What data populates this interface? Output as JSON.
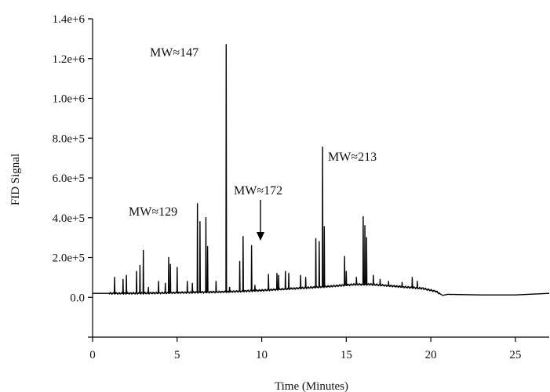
{
  "chart_data": {
    "type": "line",
    "xlabel": "Time (Minutes)",
    "ylabel": "FID Signal",
    "xlim": [
      0,
      27
    ],
    "ylim": [
      -200000,
      1400000
    ],
    "x_ticks": [
      0,
      5,
      10,
      15,
      20,
      25
    ],
    "x_tick_labels": [
      "0",
      "5",
      "10",
      "15",
      "20",
      "25"
    ],
    "y_ticks": [
      0,
      200000,
      400000,
      600000,
      800000,
      1000000,
      1200000,
      1400000
    ],
    "y_tick_labels": [
      "0.0",
      "2.0e+5",
      "4.0e+5",
      "6.0e+5",
      "8.0e+5",
      "1.0e+6",
      "1.2e+6",
      "1.4e+6"
    ],
    "grid": false,
    "line_color": "#000000",
    "baseline": [
      [
        0.0,
        20000
      ],
      [
        2.0,
        20000
      ],
      [
        4.0,
        22000
      ],
      [
        6.0,
        25000
      ],
      [
        8.0,
        28000
      ],
      [
        10.0,
        35000
      ],
      [
        12.0,
        45000
      ],
      [
        14.0,
        55000
      ],
      [
        15.5,
        65000
      ],
      [
        16.5,
        65000
      ],
      [
        18.0,
        55000
      ],
      [
        19.5,
        45000
      ],
      [
        20.3,
        30000
      ],
      [
        20.7,
        10000
      ],
      [
        21.0,
        15000
      ],
      [
        23.0,
        12000
      ],
      [
        25.0,
        12000
      ],
      [
        27.0,
        20000
      ]
    ],
    "peaks": [
      {
        "x": 1.3,
        "y": 100000
      },
      {
        "x": 1.8,
        "y": 90000
      },
      {
        "x": 2.0,
        "y": 110000
      },
      {
        "x": 2.6,
        "y": 130000
      },
      {
        "x": 2.8,
        "y": 160000
      },
      {
        "x": 3.0,
        "y": 235000
      },
      {
        "x": 3.3,
        "y": 50000
      },
      {
        "x": 3.9,
        "y": 80000
      },
      {
        "x": 4.3,
        "y": 70000
      },
      {
        "x": 4.5,
        "y": 200000
      },
      {
        "x": 4.6,
        "y": 165000
      },
      {
        "x": 5.0,
        "y": 150000
      },
      {
        "x": 5.6,
        "y": 80000
      },
      {
        "x": 5.9,
        "y": 70000
      },
      {
        "x": 6.2,
        "y": 470000
      },
      {
        "x": 6.35,
        "y": 380000
      },
      {
        "x": 6.7,
        "y": 400000
      },
      {
        "x": 6.8,
        "y": 255000
      },
      {
        "x": 7.3,
        "y": 80000
      },
      {
        "x": 7.9,
        "y": 1270000
      },
      {
        "x": 8.1,
        "y": 50000
      },
      {
        "x": 8.7,
        "y": 180000
      },
      {
        "x": 8.9,
        "y": 305000
      },
      {
        "x": 9.4,
        "y": 260000
      },
      {
        "x": 9.6,
        "y": 60000
      },
      {
        "x": 10.4,
        "y": 115000
      },
      {
        "x": 10.9,
        "y": 120000
      },
      {
        "x": 11.0,
        "y": 110000
      },
      {
        "x": 11.4,
        "y": 130000
      },
      {
        "x": 11.6,
        "y": 120000
      },
      {
        "x": 12.3,
        "y": 110000
      },
      {
        "x": 12.6,
        "y": 100000
      },
      {
        "x": 13.2,
        "y": 295000
      },
      {
        "x": 13.4,
        "y": 280000
      },
      {
        "x": 13.6,
        "y": 755000
      },
      {
        "x": 13.7,
        "y": 355000
      },
      {
        "x": 14.9,
        "y": 205000
      },
      {
        "x": 15.0,
        "y": 130000
      },
      {
        "x": 15.6,
        "y": 100000
      },
      {
        "x": 16.0,
        "y": 405000
      },
      {
        "x": 16.1,
        "y": 360000
      },
      {
        "x": 16.2,
        "y": 300000
      },
      {
        "x": 16.6,
        "y": 110000
      },
      {
        "x": 17.0,
        "y": 90000
      },
      {
        "x": 17.5,
        "y": 80000
      },
      {
        "x": 18.3,
        "y": 75000
      },
      {
        "x": 18.9,
        "y": 100000
      },
      {
        "x": 19.2,
        "y": 80000
      }
    ],
    "annotations": [
      {
        "text": "MW≈147",
        "x": 7.9,
        "y": 1270000
      },
      {
        "text": "MW≈213",
        "x": 13.6,
        "y": 755000
      },
      {
        "text": "MW≈129",
        "x": 6.2,
        "y": 470000
      },
      {
        "text": "MW≈172",
        "x": 10.0,
        "y": 270000
      }
    ]
  }
}
